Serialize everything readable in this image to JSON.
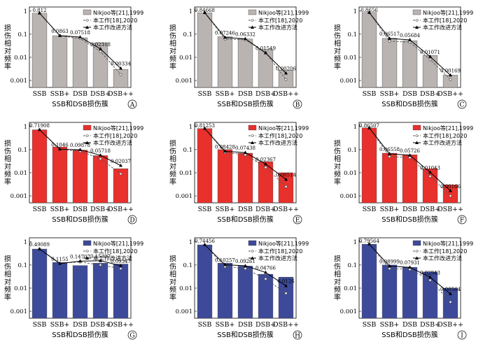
{
  "legend": {
    "series_bar": "Nikjoo等[21],1999",
    "series_dash": "本工作[18],2020",
    "series_solid": "本工作改进方法"
  },
  "axes": {
    "ylabel": "损伤相对频率",
    "xlabel": "SSB和DSB损伤簇",
    "yticks": [
      "1",
      "0.1",
      "0.01",
      "0.001"
    ]
  },
  "chart_data": [
    {
      "type": "bar",
      "panel": "A",
      "bar_color": "#b9b3b1",
      "categories": [
        "SSB",
        "SSB+",
        "DSB",
        "DSB+",
        "DSB++"
      ],
      "ylim": [
        0.0005,
        1.5
      ],
      "yscale": "log",
      "series": [
        {
          "name": "Nikjoo等[21],1999",
          "values": [
            0.812,
            0.086,
            0.07,
            0.042,
            0.003
          ]
        },
        {
          "name": "本工作[18],2020",
          "values": [
            0.812,
            0.0863,
            0.065,
            0.018,
            0.0018
          ]
        },
        {
          "name": "本工作改进方法",
          "values": [
            0.812,
            0.0863,
            0.07518,
            0.02318,
            0.00334
          ]
        }
      ],
      "data_labels": [
        "0.812",
        "0.0863",
        "0.07518",
        "0.02318",
        "0.00334"
      ]
    },
    {
      "type": "bar",
      "panel": "B",
      "bar_color": "#b9b3b1",
      "categories": [
        "SSB",
        "SSB+",
        "DSB",
        "DSB+",
        "DSB++"
      ],
      "ylim": [
        0.0005,
        1.5
      ],
      "yscale": "log",
      "series": [
        {
          "name": "Nikjoo等[21],1999",
          "values": [
            0.84668,
            0.078,
            0.062,
            0.022,
            0.0028
          ]
        },
        {
          "name": "本工作[18],2020",
          "values": [
            0.84668,
            0.062,
            0.057,
            0.016,
            0.0011
          ]
        },
        {
          "name": "本工作改进方法",
          "values": [
            0.84668,
            0.07246,
            0.06332,
            0.01549,
            0.00206
          ]
        }
      ],
      "data_labels": [
        "0.84668",
        "0.07246",
        "0.06332",
        "0.01549",
        "0.00206"
      ]
    },
    {
      "type": "bar",
      "panel": "C",
      "bar_color": "#b9b3b1",
      "categories": [
        "SSB",
        "SSB+",
        "DSB",
        "DSB+",
        "DSB++"
      ],
      "ylim": [
        0.0005,
        1.5
      ],
      "yscale": "log",
      "series": [
        {
          "name": "Nikjoo等[21],1999",
          "values": [
            0.8656,
            0.066,
            0.052,
            0.012,
            0.0017
          ]
        },
        {
          "name": "本工作[18],2020",
          "values": [
            0.8656,
            0.05,
            0.045,
            0.008,
            0.0011
          ]
        },
        {
          "name": "本工作改进方法",
          "values": [
            0.8656,
            0.06517,
            0.05684,
            0.01071,
            0.00169
          ]
        }
      ],
      "data_labels": [
        "0.8656",
        "0.06517",
        "0.05684",
        "0.01071",
        "0.00169"
      ]
    },
    {
      "type": "bar",
      "panel": "D",
      "bar_color": "#e8302c",
      "categories": [
        "SSB",
        "SSB+",
        "DSB",
        "DSB+",
        "DSB++"
      ],
      "ylim": [
        0.0005,
        1.5
      ],
      "yscale": "log",
      "series": [
        {
          "name": "Nikjoo等[21],1999",
          "values": [
            0.71908,
            0.13,
            0.095,
            0.055,
            0.015
          ]
        },
        {
          "name": "本工作[18],2020",
          "values": [
            0.71908,
            0.1,
            0.085,
            0.04,
            0.009
          ]
        },
        {
          "name": "本工作改进方法",
          "values": [
            0.71908,
            0.1046,
            0.09878,
            0.05718,
            0.02037
          ]
        }
      ],
      "data_labels": [
        "0.71908",
        "0.1046",
        "0.09878",
        "0.05718",
        "0.02037"
      ]
    },
    {
      "type": "bar",
      "panel": "E",
      "bar_color": "#e8302c",
      "categories": [
        "SSB",
        "SSB+",
        "DSB",
        "DSB+",
        "DSB++"
      ],
      "ylim": [
        0.0005,
        1.5
      ],
      "yscale": "log",
      "series": [
        {
          "name": "Nikjoo等[21],1999",
          "values": [
            0.81253,
            0.1,
            0.07,
            0.03,
            0.01
          ]
        },
        {
          "name": "本工作[18],2020",
          "values": [
            0.81253,
            0.075,
            0.06,
            0.017,
            0.0025
          ]
        },
        {
          "name": "本工作改进方法",
          "values": [
            0.81253,
            0.08428,
            0.07438,
            0.02367,
            0.00514
          ]
        }
      ],
      "data_labels": [
        "0.81253",
        "0.08428",
        "0.07438",
        "0.02367",
        "0.00514"
      ]
    },
    {
      "type": "bar",
      "panel": "F",
      "bar_color": "#e8302c",
      "categories": [
        "SSB",
        "SSB+",
        "DSB",
        "DSB+",
        "DSB++"
      ],
      "ylim": [
        0.0005,
        1.5
      ],
      "yscale": "log",
      "series": [
        {
          "name": "Nikjoo等[21],1999",
          "values": [
            0.86507,
            0.07,
            0.06,
            0.015,
            0.003
          ]
        },
        {
          "name": "本工作[18],2020",
          "values": [
            0.86507,
            0.05,
            0.045,
            0.007,
            0.001
          ]
        },
        {
          "name": "本工作改进方法",
          "values": [
            0.86507,
            0.06558,
            0.05726,
            0.01043,
            0.00166
          ]
        }
      ],
      "data_labels": [
        "0.86507",
        "0.06558",
        "0.05726",
        "0.01043",
        "0.00166"
      ]
    },
    {
      "type": "bar",
      "panel": "G",
      "bar_color": "#3d4a9a",
      "categories": [
        "SSB",
        "SSB+",
        "DSB",
        "DSB+",
        "DSB++"
      ],
      "ylim": [
        0.0005,
        1.5
      ],
      "yscale": "log",
      "series": [
        {
          "name": "Nikjoo等[21],1999",
          "values": [
            0.49089,
            0.13,
            0.095,
            0.12,
            0.11
          ]
        },
        {
          "name": "本工作[18],2020",
          "values": [
            0.49089,
            0.12,
            0.135,
            0.1,
            0.07
          ]
        },
        {
          "name": "本工作改进方法",
          "values": [
            0.49089,
            0.1155,
            0.14707,
            0.15307,
            0.09347
          ]
        }
      ],
      "data_labels": [
        "0.49089",
        "0.1155",
        "0.14707",
        "0.15307",
        "0.09347"
      ]
    },
    {
      "type": "bar",
      "panel": "H",
      "bar_color": "#3d4a9a",
      "categories": [
        "SSB",
        "SSB+",
        "DSB",
        "DSB+",
        "DSB++"
      ],
      "ylim": [
        0.0005,
        1.5
      ],
      "yscale": "log",
      "series": [
        {
          "name": "Nikjoo等[21],1999",
          "values": [
            0.74456,
            0.12,
            0.09,
            0.04,
            0.03
          ]
        },
        {
          "name": "本工作[18],2020",
          "values": [
            0.74456,
            0.085,
            0.07,
            0.025,
            0.006
          ]
        },
        {
          "name": "本工作改进方法",
          "values": [
            0.74456,
            0.10257,
            0.09261,
            0.04766,
            0.0126
          ]
        }
      ],
      "data_labels": [
        "0.74456",
        "0.10257",
        "0.09261",
        "0.04766",
        "0.0126"
      ]
    },
    {
      "type": "bar",
      "panel": "I",
      "bar_color": "#3d4a9a",
      "categories": [
        "SSB",
        "SSB+",
        "DSB",
        "DSB+",
        "DSB++"
      ],
      "ylim": [
        0.0005,
        1.5
      ],
      "yscale": "log",
      "series": [
        {
          "name": "Nikjoo等[21],1999",
          "values": [
            0.79564,
            0.1,
            0.08,
            0.05,
            0.01
          ]
        },
        {
          "name": "本工作[18],2020",
          "values": [
            0.79564,
            0.07,
            0.065,
            0.022,
            0.0025
          ]
        },
        {
          "name": "本工作改进方法",
          "values": [
            0.79564,
            0.08999,
            0.07931,
            0.02943,
            0.00564
          ]
        }
      ],
      "data_labels": [
        "0.79564",
        "0.08999",
        "0.07931",
        "0.02943",
        "0.00564"
      ]
    }
  ]
}
